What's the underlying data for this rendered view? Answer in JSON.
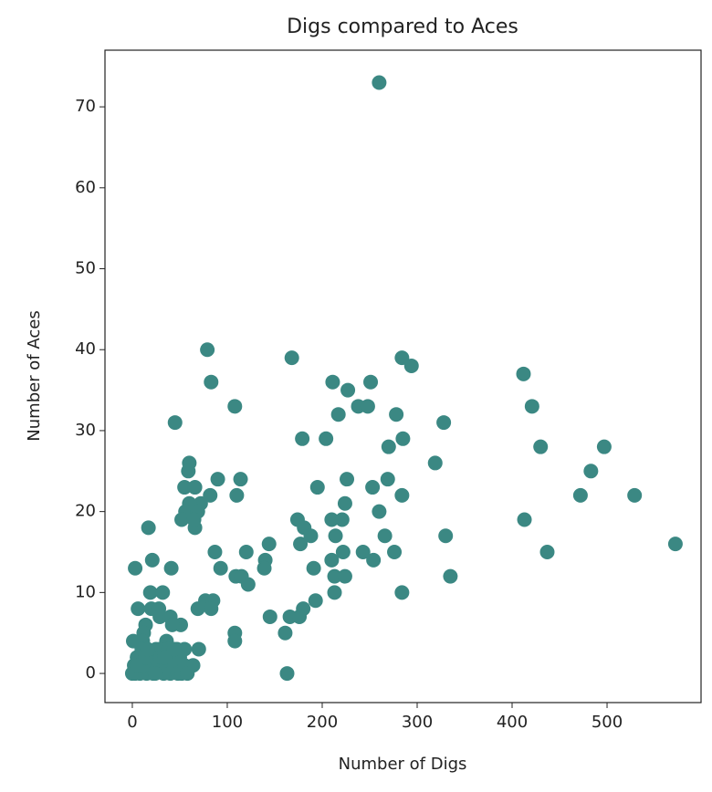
{
  "chart_data": {
    "type": "scatter",
    "title": "Digs compared to Aces",
    "xlabel": "Number of Digs",
    "ylabel": "Number of Aces",
    "color": "#3b8883",
    "x": [
      260,
      79,
      168,
      83,
      284,
      294,
      211,
      251,
      227,
      412,
      421,
      108,
      238,
      248,
      217,
      278,
      45,
      328,
      270,
      285,
      179,
      204,
      430,
      497,
      319,
      60,
      59,
      483,
      90,
      114,
      226,
      269,
      55,
      66,
      195,
      253,
      82,
      110,
      72,
      224,
      472,
      529,
      284,
      60,
      56,
      69,
      260,
      17,
      174,
      210,
      221,
      413,
      52,
      66,
      65,
      181,
      188,
      214,
      330,
      266,
      144,
      177,
      572,
      87,
      120,
      243,
      222,
      276,
      437,
      140,
      254,
      21,
      210,
      93,
      139,
      191,
      3,
      41,
      109,
      115,
      122,
      213,
      224,
      335,
      284,
      213,
      19,
      32,
      193,
      77,
      85,
      69,
      83,
      6,
      20,
      28,
      180,
      29,
      145,
      166,
      176,
      40,
      14,
      51,
      42,
      12,
      161,
      108,
      108,
      11,
      36,
      1,
      29,
      70,
      47,
      55,
      64,
      163,
      0,
      2,
      5,
      8,
      10,
      12,
      15,
      18,
      20,
      22,
      25,
      28,
      30,
      33,
      36,
      38,
      40,
      42,
      45,
      48,
      50,
      52,
      55,
      58,
      3,
      6,
      14,
      24,
      34,
      44,
      16
    ],
    "values": [
      73,
      40,
      39,
      36,
      39,
      38,
      36,
      36,
      35,
      37,
      33,
      33,
      33,
      33,
      32,
      32,
      31,
      31,
      28,
      29,
      29,
      29,
      28,
      28,
      26,
      26,
      25,
      25,
      24,
      24,
      24,
      24,
      23,
      23,
      23,
      23,
      22,
      22,
      21,
      21,
      22,
      22,
      22,
      21,
      20,
      20,
      20,
      18,
      19,
      19,
      19,
      19,
      19,
      18,
      19,
      18,
      17,
      17,
      17,
      17,
      16,
      16,
      16,
      15,
      15,
      15,
      15,
      15,
      15,
      14,
      14,
      14,
      14,
      13,
      13,
      13,
      13,
      13,
      12,
      12,
      11,
      12,
      12,
      12,
      10,
      10,
      10,
      10,
      9,
      9,
      9,
      8,
      8,
      8,
      8,
      8,
      8,
      7,
      7,
      7,
      7,
      7,
      6,
      6,
      6,
      5,
      5,
      5,
      4,
      4,
      4,
      4,
      3,
      3,
      3,
      3,
      1,
      0,
      0,
      1,
      2,
      0,
      3,
      1,
      0,
      2,
      1,
      0,
      3,
      1,
      2,
      0,
      1,
      3,
      0,
      2,
      1,
      0,
      2,
      0,
      1,
      0,
      0,
      1,
      2,
      0,
      2,
      3,
      3
    ],
    "xlim": [
      -28.8,
      599
    ],
    "ylim": [
      -3.6,
      77
    ],
    "xticks": [
      0,
      100,
      200,
      300,
      400,
      500
    ],
    "yticks": [
      0,
      10,
      20,
      30,
      40,
      50,
      60,
      70
    ]
  }
}
